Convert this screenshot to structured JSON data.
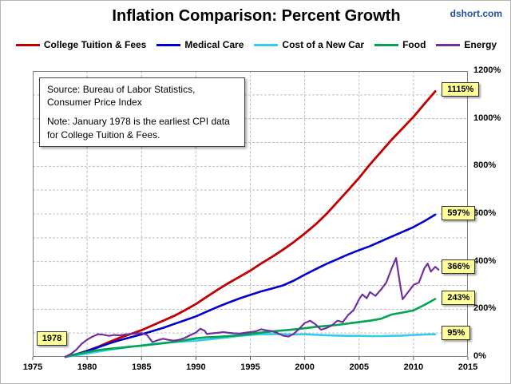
{
  "header": {
    "title": "Inflation Comparison: Percent Growth",
    "watermark": "dshort.com"
  },
  "note_box": {
    "line1": "Source: Bureau of Labor Statistics, Consumer Price Index",
    "line2": "Note: January 1978  is the earliest CPI data for College Tuition & Fees."
  },
  "chart_data": {
    "type": "line",
    "title": "Inflation Comparison: Percent Growth",
    "xlabel": "",
    "ylabel": "",
    "x_axis": {
      "min": 1975,
      "max": 2015,
      "ticks": [
        1975,
        1980,
        1985,
        1990,
        1995,
        2000,
        2005,
        2010,
        2015
      ]
    },
    "y_axis": {
      "min": 0,
      "max": 1200,
      "label_step": 200,
      "grid_step": 100,
      "unit": "%"
    },
    "grid": "dashed",
    "legend_position": "top",
    "series": [
      {
        "name": "College Tuition & Fees",
        "color": "#C00000",
        "width": 2.8,
        "end_value": 1115,
        "points": [
          [
            1978,
            0
          ],
          [
            1979,
            10
          ],
          [
            1980,
            25
          ],
          [
            1981,
            42
          ],
          [
            1982,
            62
          ],
          [
            1983,
            80
          ],
          [
            1984,
            96
          ],
          [
            1985,
            112
          ],
          [
            1986,
            132
          ],
          [
            1987,
            152
          ],
          [
            1988,
            172
          ],
          [
            1989,
            196
          ],
          [
            1990,
            222
          ],
          [
            1991,
            252
          ],
          [
            1992,
            282
          ],
          [
            1993,
            310
          ],
          [
            1994,
            336
          ],
          [
            1995,
            362
          ],
          [
            1996,
            392
          ],
          [
            1997,
            420
          ],
          [
            1998,
            450
          ],
          [
            1999,
            482
          ],
          [
            2000,
            518
          ],
          [
            2001,
            556
          ],
          [
            2002,
            600
          ],
          [
            2003,
            650
          ],
          [
            2004,
            700
          ],
          [
            2005,
            752
          ],
          [
            2006,
            808
          ],
          [
            2007,
            860
          ],
          [
            2008,
            912
          ],
          [
            2009,
            960
          ],
          [
            2010,
            1008
          ],
          [
            2011,
            1062
          ],
          [
            2012,
            1115
          ]
        ]
      },
      {
        "name": "Medical Care",
        "color": "#0000CC",
        "width": 2.6,
        "end_value": 597,
        "points": [
          [
            1978,
            0
          ],
          [
            1979,
            11
          ],
          [
            1980,
            24
          ],
          [
            1981,
            40
          ],
          [
            1982,
            56
          ],
          [
            1983,
            70
          ],
          [
            1984,
            82
          ],
          [
            1985,
            95
          ],
          [
            1986,
            108
          ],
          [
            1987,
            122
          ],
          [
            1988,
            138
          ],
          [
            1989,
            154
          ],
          [
            1990,
            170
          ],
          [
            1991,
            190
          ],
          [
            1992,
            210
          ],
          [
            1993,
            228
          ],
          [
            1994,
            245
          ],
          [
            1995,
            260
          ],
          [
            1996,
            275
          ],
          [
            1997,
            287
          ],
          [
            1998,
            300
          ],
          [
            1999,
            320
          ],
          [
            2000,
            345
          ],
          [
            2001,
            368
          ],
          [
            2002,
            390
          ],
          [
            2003,
            410
          ],
          [
            2004,
            430
          ],
          [
            2005,
            448
          ],
          [
            2006,
            465
          ],
          [
            2007,
            485
          ],
          [
            2008,
            505
          ],
          [
            2009,
            525
          ],
          [
            2010,
            545
          ],
          [
            2011,
            570
          ],
          [
            2012,
            597
          ]
        ]
      },
      {
        "name": "Cost of a New Car",
        "color": "#33CCEE",
        "width": 2.6,
        "end_value": 95,
        "points": [
          [
            1978,
            0
          ],
          [
            1979,
            7
          ],
          [
            1980,
            14
          ],
          [
            1981,
            22
          ],
          [
            1982,
            30
          ],
          [
            1983,
            36
          ],
          [
            1984,
            42
          ],
          [
            1985,
            48
          ],
          [
            1986,
            54
          ],
          [
            1987,
            58
          ],
          [
            1988,
            62
          ],
          [
            1989,
            65
          ],
          [
            1990,
            68
          ],
          [
            1991,
            72
          ],
          [
            1992,
            77
          ],
          [
            1993,
            82
          ],
          [
            1994,
            88
          ],
          [
            1995,
            92
          ],
          [
            1996,
            95
          ],
          [
            1997,
            96
          ],
          [
            1998,
            95
          ],
          [
            1999,
            94
          ],
          [
            2000,
            95
          ],
          [
            2001,
            93
          ],
          [
            2002,
            91
          ],
          [
            2003,
            89
          ],
          [
            2004,
            88
          ],
          [
            2005,
            88
          ],
          [
            2006,
            87
          ],
          [
            2007,
            87
          ],
          [
            2008,
            88
          ],
          [
            2009,
            89
          ],
          [
            2010,
            92
          ],
          [
            2011,
            94
          ],
          [
            2012,
            95
          ]
        ]
      },
      {
        "name": "Food",
        "color": "#00A550",
        "width": 2.6,
        "end_value": 243,
        "points": [
          [
            1978,
            0
          ],
          [
            1979,
            10
          ],
          [
            1980,
            20
          ],
          [
            1981,
            28
          ],
          [
            1982,
            34
          ],
          [
            1983,
            38
          ],
          [
            1984,
            43
          ],
          [
            1985,
            47
          ],
          [
            1986,
            52
          ],
          [
            1987,
            57
          ],
          [
            1988,
            63
          ],
          [
            1989,
            70
          ],
          [
            1990,
            78
          ],
          [
            1991,
            82
          ],
          [
            1992,
            84
          ],
          [
            1993,
            87
          ],
          [
            1994,
            91
          ],
          [
            1995,
            96
          ],
          [
            1996,
            102
          ],
          [
            1997,
            107
          ],
          [
            1998,
            111
          ],
          [
            1999,
            115
          ],
          [
            2000,
            120
          ],
          [
            2001,
            126
          ],
          [
            2002,
            130
          ],
          [
            2003,
            134
          ],
          [
            2004,
            140
          ],
          [
            2005,
            146
          ],
          [
            2006,
            152
          ],
          [
            2007,
            160
          ],
          [
            2008,
            178
          ],
          [
            2009,
            186
          ],
          [
            2010,
            195
          ],
          [
            2011,
            218
          ],
          [
            2012,
            243
          ]
        ]
      },
      {
        "name": "Energy",
        "color": "#7030A0",
        "width": 2.2,
        "end_value": 366,
        "points": [
          [
            1978,
            0
          ],
          [
            1978.5,
            12
          ],
          [
            1979,
            30
          ],
          [
            1979.5,
            55
          ],
          [
            1980,
            72
          ],
          [
            1980.5,
            85
          ],
          [
            1981,
            95
          ],
          [
            1981.5,
            93
          ],
          [
            1982,
            88
          ],
          [
            1982.5,
            92
          ],
          [
            1983,
            90
          ],
          [
            1983.5,
            94
          ],
          [
            1984,
            96
          ],
          [
            1984.5,
            98
          ],
          [
            1985,
            100
          ],
          [
            1985.5,
            92
          ],
          [
            1986,
            62
          ],
          [
            1986.5,
            70
          ],
          [
            1987,
            76
          ],
          [
            1987.5,
            71
          ],
          [
            1988,
            68
          ],
          [
            1988.5,
            72
          ],
          [
            1989,
            80
          ],
          [
            1989.5,
            92
          ],
          [
            1990,
            102
          ],
          [
            1990.4,
            118
          ],
          [
            1990.8,
            110
          ],
          [
            1991,
            96
          ],
          [
            1991.5,
            99
          ],
          [
            1992,
            101
          ],
          [
            1992.5,
            104
          ],
          [
            1993,
            101
          ],
          [
            1993.5,
            99
          ],
          [
            1994,
            98
          ],
          [
            1994.5,
            101
          ],
          [
            1995,
            104
          ],
          [
            1995.5,
            107
          ],
          [
            1996,
            116
          ],
          [
            1996.5,
            111
          ],
          [
            1997,
            108
          ],
          [
            1997.5,
            100
          ],
          [
            1998,
            89
          ],
          [
            1998.5,
            85
          ],
          [
            1999,
            97
          ],
          [
            1999.5,
            118
          ],
          [
            2000,
            142
          ],
          [
            2000.5,
            152
          ],
          [
            2001,
            136
          ],
          [
            2001.5,
            114
          ],
          [
            2002,
            121
          ],
          [
            2002.5,
            132
          ],
          [
            2003,
            152
          ],
          [
            2003.5,
            146
          ],
          [
            2004,
            176
          ],
          [
            2004.5,
            196
          ],
          [
            2005,
            242
          ],
          [
            2005.3,
            262
          ],
          [
            2005.7,
            246
          ],
          [
            2006,
            272
          ],
          [
            2006.5,
            256
          ],
          [
            2007,
            282
          ],
          [
            2007.5,
            312
          ],
          [
            2008,
            372
          ],
          [
            2008.4,
            415
          ],
          [
            2008.8,
            295
          ],
          [
            2009,
            242
          ],
          [
            2009.5,
            272
          ],
          [
            2010,
            302
          ],
          [
            2010.5,
            312
          ],
          [
            2011,
            372
          ],
          [
            2011.3,
            392
          ],
          [
            2011.6,
            358
          ],
          [
            2012,
            378
          ],
          [
            2012.3,
            366
          ]
        ]
      }
    ],
    "callouts": [
      {
        "label": "1115%",
        "year": 2012.6,
        "value": 1115
      },
      {
        "label": "597%",
        "year": 2012.6,
        "value": 597
      },
      {
        "label": "366%",
        "year": 2012.6,
        "value": 372
      },
      {
        "label": "243%",
        "year": 2012.6,
        "value": 243
      },
      {
        "label": "95%",
        "year": 2012.6,
        "value": 95
      },
      {
        "label": "1978",
        "year": 1975.35,
        "value": 70
      }
    ]
  }
}
